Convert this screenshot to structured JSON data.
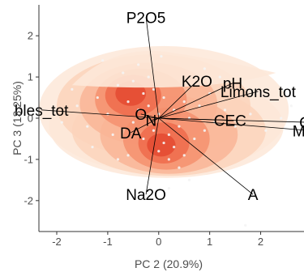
{
  "chart_data": {
    "type": "biplot",
    "xlabel": "PC 2 (20.9%)",
    "ylabel": "PC 3 (13.25%)",
    "xlim": [
      -2.35,
      2.85
    ],
    "ylim": [
      -2.75,
      2.75
    ],
    "x_ticks": [
      -2,
      -1,
      0,
      1,
      2
    ],
    "y_ticks": [
      -2,
      -1,
      0,
      1,
      2
    ],
    "grid": false,
    "background": "density-contours",
    "colors": {
      "density_low": "#fde3cf",
      "density_high": "#e8442a",
      "points": "#f4f4f4",
      "arrows": "#000000"
    },
    "loadings": [
      {
        "label": "P2O5",
        "x": -0.25,
        "y": 2.45
      },
      {
        "label": "K2O",
        "x": 0.75,
        "y": 0.9
      },
      {
        "label": "pH",
        "x": 1.45,
        "y": 0.85
      },
      {
        "label": "Limons_tot",
        "x": 1.95,
        "y": 0.65
      },
      {
        "label": "bles_tot",
        "x": -2.3,
        "y": 0.2
      },
      {
        "label": "O",
        "x": -0.35,
        "y": 0.1
      },
      {
        "label": "N",
        "x": -0.15,
        "y": -0.05
      },
      {
        "label": "DA",
        "x": -0.55,
        "y": -0.35
      },
      {
        "label": "CEC",
        "x": 1.4,
        "y": -0.05
      },
      {
        "label": "Ca",
        "x": 2.95,
        "y": -0.1
      },
      {
        "label": "MgO",
        "x": 2.95,
        "y": -0.3
      },
      {
        "label": "Na2O",
        "x": -0.25,
        "y": -1.85
      },
      {
        "label": "A",
        "x": 1.85,
        "y": -1.85
      }
    ],
    "scores": [
      [
        -1.6,
        0.3
      ],
      [
        -1.4,
        -0.2
      ],
      [
        -1.2,
        0.5
      ],
      [
        -1.0,
        0.1
      ],
      [
        -0.9,
        -0.4
      ],
      [
        -0.8,
        0.8
      ],
      [
        -0.7,
        1.1
      ],
      [
        -0.6,
        0.4
      ],
      [
        -0.5,
        0.9
      ],
      [
        -0.5,
        -0.1
      ],
      [
        -0.4,
        1.3
      ],
      [
        -0.4,
        0.2
      ],
      [
        -0.3,
        0.6
      ],
      [
        -0.3,
        -0.5
      ],
      [
        -0.2,
        1.0
      ],
      [
        -0.2,
        0.3
      ],
      [
        -0.1,
        -0.3
      ],
      [
        -0.1,
        0.7
      ],
      [
        0.0,
        -0.8
      ],
      [
        0.0,
        0.1
      ],
      [
        0.1,
        -0.6
      ],
      [
        0.1,
        0.5
      ],
      [
        0.2,
        -1.0
      ],
      [
        0.2,
        -0.4
      ],
      [
        0.3,
        -0.7
      ],
      [
        0.3,
        0.2
      ],
      [
        0.4,
        -1.2
      ],
      [
        0.4,
        -0.2
      ],
      [
        0.5,
        0.4
      ],
      [
        0.5,
        -0.9
      ],
      [
        0.6,
        0.0
      ],
      [
        0.7,
        -0.5
      ],
      [
        0.8,
        0.3
      ],
      [
        0.9,
        -0.3
      ],
      [
        1.0,
        0.6
      ],
      [
        1.1,
        -0.1
      ],
      [
        1.3,
        0.2
      ],
      [
        1.5,
        -0.2
      ],
      [
        1.8,
        0.1
      ],
      [
        2.1,
        -0.3
      ],
      [
        2.4,
        0.0
      ],
      [
        -1.9,
        -0.1
      ],
      [
        -1.3,
        -0.7
      ],
      [
        0.6,
        -1.5
      ],
      [
        0.2,
        -1.7
      ],
      [
        -0.6,
        -0.9
      ],
      [
        0.9,
        1.2
      ],
      [
        1.7,
        -2.6
      ],
      [
        -1.1,
        1.4
      ],
      [
        1.2,
        1.0
      ],
      [
        -0.8,
        -1.0
      ],
      [
        0.05,
        1.5
      ],
      [
        2.6,
        0.3
      ],
      [
        -1.7,
        0.7
      ]
    ]
  }
}
